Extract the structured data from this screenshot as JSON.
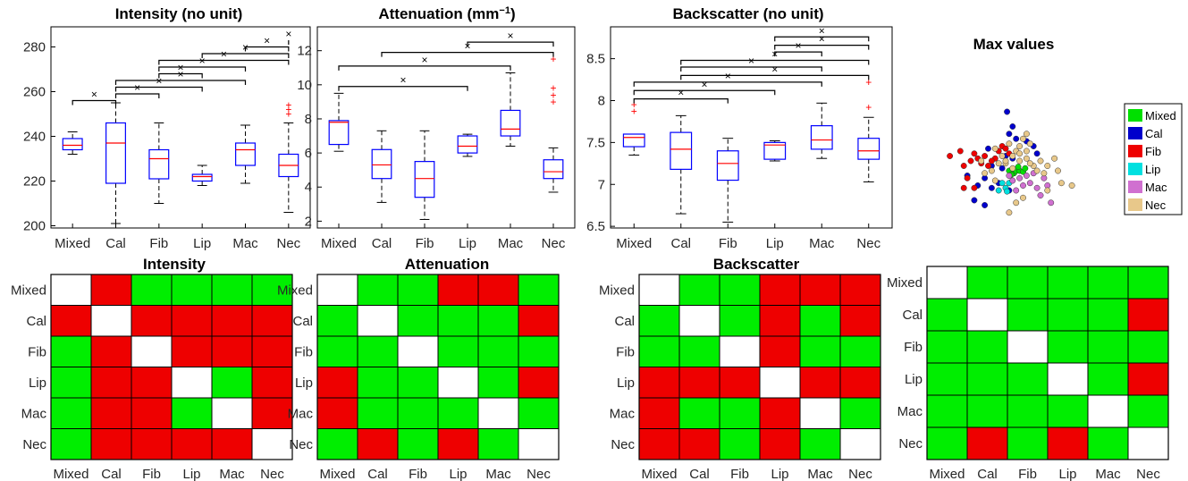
{
  "chart_data": [
    {
      "type": "box",
      "title": "Intensity (no unit)",
      "categories": [
        "Mixed",
        "Cal",
        "Fib",
        "Lip",
        "Mac",
        "Nec"
      ],
      "ylim": [
        199,
        289
      ],
      "yticks": [
        200,
        220,
        240,
        260,
        280
      ],
      "boxes": [
        {
          "lw": 232,
          "q1": 234,
          "med": 236,
          "q3": 239,
          "uw": 242,
          "outliers": []
        },
        {
          "lw": 201,
          "q1": 219,
          "med": 237,
          "q3": 246,
          "uw": 255,
          "outliers": []
        },
        {
          "lw": 210,
          "q1": 221,
          "med": 230,
          "q3": 234,
          "uw": 246,
          "outliers": []
        },
        {
          "lw": 218,
          "q1": 220,
          "med": 222,
          "q3": 223,
          "uw": 227,
          "outliers": []
        },
        {
          "lw": 219,
          "q1": 227,
          "med": 234,
          "q3": 237,
          "uw": 245,
          "outliers": []
        },
        {
          "lw": 206,
          "q1": 222,
          "med": 227,
          "q3": 232,
          "uw": 246,
          "outliers": [
            250,
            252,
            254
          ]
        }
      ],
      "significance": [
        {
          "a": 0,
          "b": 1,
          "y": 256
        },
        {
          "a": 1,
          "b": 2,
          "y": 259
        },
        {
          "a": 1,
          "b": 3,
          "y": 262
        },
        {
          "a": 1,
          "b": 4,
          "y": 265
        },
        {
          "a": 2,
          "b": 3,
          "y": 268
        },
        {
          "a": 2,
          "b": 4,
          "y": 271
        },
        {
          "a": 2,
          "b": 5,
          "y": 274
        },
        {
          "a": 3,
          "b": 5,
          "y": 277
        },
        {
          "a": 4,
          "b": 5,
          "y": 280
        },
        {
          "a": 5,
          "b": 6,
          "y": 283
        }
      ]
    },
    {
      "type": "box",
      "title": "Attenuation (mm",
      "title_sup": "−1",
      "title_end": ")",
      "categories": [
        "Mixed",
        "Cal",
        "Fib",
        "Lip",
        "Mac",
        "Nec"
      ],
      "ylim": [
        1.6,
        13.4
      ],
      "yticks": [
        2,
        4,
        6,
        8,
        10,
        12
      ],
      "boxes": [
        {
          "lw": 6.1,
          "q1": 6.5,
          "med": 7.8,
          "q3": 7.9,
          "uw": 9.5,
          "outliers": []
        },
        {
          "lw": 3.1,
          "q1": 4.5,
          "med": 5.3,
          "q3": 6.2,
          "uw": 7.3,
          "outliers": []
        },
        {
          "lw": 2.1,
          "q1": 3.4,
          "med": 4.5,
          "q3": 5.5,
          "uw": 7.3,
          "outliers": []
        },
        {
          "lw": 5.8,
          "q1": 6.0,
          "med": 6.4,
          "q3": 7.0,
          "uw": 7.1,
          "outliers": []
        },
        {
          "lw": 6.4,
          "q1": 7.0,
          "med": 7.4,
          "q3": 8.5,
          "uw": 10.7,
          "outliers": []
        },
        {
          "lw": 3.7,
          "q1": 4.5,
          "med": 4.9,
          "q3": 5.6,
          "uw": 6.3,
          "outliers": [
            9.0,
            9.4,
            9.8,
            11.5
          ]
        }
      ],
      "significance": [
        {
          "a": 0,
          "b": 3,
          "y": 9.9
        },
        {
          "a": 0,
          "b": 4,
          "y": 11.1
        },
        {
          "a": 1,
          "b": 5,
          "y": 11.9
        },
        {
          "a": 3,
          "b": 5,
          "y": 12.5
        }
      ]
    },
    {
      "type": "box",
      "title": "Backscatter (no unit)",
      "categories": [
        "Mixed",
        "Cal",
        "Fib",
        "Lip",
        "Mac",
        "Nec"
      ],
      "ylim": [
        6.48,
        8.88
      ],
      "yticks": [
        6.5,
        7,
        7.5,
        8,
        8.5
      ],
      "boxes": [
        {
          "lw": 7.35,
          "q1": 7.45,
          "med": 7.56,
          "q3": 7.6,
          "uw": 7.6,
          "outliers": [
            7.87,
            7.95
          ]
        },
        {
          "lw": 6.65,
          "q1": 7.18,
          "med": 7.42,
          "q3": 7.62,
          "uw": 7.82,
          "outliers": []
        },
        {
          "lw": 6.55,
          "q1": 7.05,
          "med": 7.25,
          "q3": 7.4,
          "uw": 7.55,
          "outliers": []
        },
        {
          "lw": 7.28,
          "q1": 7.3,
          "med": 7.47,
          "q3": 7.5,
          "uw": 7.52,
          "outliers": []
        },
        {
          "lw": 7.31,
          "q1": 7.42,
          "med": 7.53,
          "q3": 7.7,
          "uw": 7.97,
          "outliers": []
        },
        {
          "lw": 7.03,
          "q1": 7.3,
          "med": 7.4,
          "q3": 7.55,
          "uw": 7.8,
          "outliers": [
            7.92,
            8.22
          ]
        }
      ],
      "significance": [
        {
          "a": 0,
          "b": 2,
          "y": 8.02
        },
        {
          "a": 0,
          "b": 3,
          "y": 8.12
        },
        {
          "a": 0,
          "b": 4,
          "y": 8.22
        },
        {
          "a": 1,
          "b": 5,
          "y": 8.3
        },
        {
          "a": 1,
          "b": 4,
          "y": 8.4
        },
        {
          "a": 1,
          "b": 5,
          "y": 8.48
        },
        {
          "a": 3,
          "b": 4,
          "y": 8.58
        },
        {
          "a": 3,
          "b": 5,
          "y": 8.66
        },
        {
          "a": 3,
          "b": 6,
          "y": 8.76
        }
      ]
    },
    {
      "type": "scatter",
      "title": "Max values",
      "series": [
        {
          "name": "Mixed",
          "color": "#00e000",
          "points": [
            [
              0.05,
              -0.2
            ],
            [
              0.12,
              -0.25
            ],
            [
              0.15,
              -0.2
            ],
            [
              0.2,
              -0.2
            ],
            [
              0.25,
              -0.22
            ],
            [
              0.08,
              -0.28
            ],
            [
              0.18,
              -0.12
            ],
            [
              0.28,
              -0.15
            ]
          ]
        },
        {
          "name": "Cal",
          "color": "#0000cc",
          "points": [
            [
              0.02,
              1.0
            ],
            [
              0.05,
              0.55
            ],
            [
              0.1,
              0.7
            ],
            [
              0.15,
              0.45
            ],
            [
              0.3,
              0.4
            ],
            [
              0.4,
              0.3
            ],
            [
              0.45,
              0.15
            ],
            [
              -0.25,
              0.25
            ],
            [
              -0.2,
              -0.1
            ],
            [
              -0.3,
              -0.35
            ],
            [
              -0.4,
              -0.5
            ],
            [
              -0.55,
              -0.3
            ],
            [
              -0.45,
              -0.8
            ],
            [
              -0.3,
              -0.9
            ],
            [
              -0.2,
              -0.55
            ],
            [
              -0.1,
              -0.45
            ],
            [
              0.0,
              0.1
            ],
            [
              0.1,
              0.05
            ],
            [
              -0.05,
              -0.15
            ],
            [
              0.05,
              -0.6
            ]
          ]
        },
        {
          "name": "Fib",
          "color": "#ee0000",
          "points": [
            [
              -0.8,
              0.1
            ],
            [
              -0.65,
              0.2
            ],
            [
              -0.6,
              -0.1
            ],
            [
              -0.5,
              0.0
            ],
            [
              -0.45,
              0.15
            ],
            [
              -0.4,
              0.05
            ],
            [
              -0.35,
              -0.05
            ],
            [
              -0.3,
              0.1
            ],
            [
              -0.25,
              -0.1
            ],
            [
              -0.15,
              0.05
            ],
            [
              -0.1,
              0.2
            ],
            [
              -0.05,
              0.3
            ],
            [
              0.0,
              0.25
            ],
            [
              0.05,
              0.15
            ],
            [
              -0.55,
              -0.35
            ],
            [
              -0.45,
              -0.55
            ],
            [
              -0.6,
              -0.55
            ],
            [
              -0.2,
              0.0
            ]
          ]
        },
        {
          "name": "Lip",
          "color": "#00e0e0",
          "points": [
            [
              -0.05,
              -0.45
            ],
            [
              0.05,
              -0.45
            ],
            [
              -0.1,
              -0.6
            ],
            [
              0.0,
              -0.55
            ],
            [
              0.02,
              -0.62
            ]
          ]
        },
        {
          "name": "Mac",
          "color": "#d070d0",
          "points": [
            [
              0.1,
              -0.4
            ],
            [
              0.2,
              -0.35
            ],
            [
              0.3,
              -0.3
            ],
            [
              0.35,
              -0.45
            ],
            [
              0.45,
              -0.55
            ],
            [
              0.5,
              -0.7
            ],
            [
              0.55,
              -0.35
            ],
            [
              0.15,
              -0.6
            ],
            [
              0.25,
              -0.5
            ],
            [
              0.6,
              -0.5
            ],
            [
              0.65,
              -0.85
            ],
            [
              0.4,
              -0.25
            ],
            [
              0.05,
              -0.3
            ]
          ]
        },
        {
          "name": "Nec",
          "color": "#e8c88a",
          "points": [
            [
              0.25,
              0.45
            ],
            [
              0.3,
              0.55
            ],
            [
              0.35,
              0.35
            ],
            [
              0.2,
              0.3
            ],
            [
              0.15,
              0.2
            ],
            [
              0.1,
              0.1
            ],
            [
              0.05,
              0.35
            ],
            [
              -0.05,
              0.1
            ],
            [
              -0.1,
              -0.05
            ],
            [
              -0.2,
              -0.2
            ],
            [
              -0.3,
              -0.25
            ],
            [
              -0.35,
              0.0
            ],
            [
              0.0,
              -0.05
            ],
            [
              0.1,
              -0.15
            ],
            [
              0.2,
              0.0
            ],
            [
              0.3,
              0.05
            ],
            [
              0.4,
              -0.1
            ],
            [
              0.45,
              -0.2
            ],
            [
              0.5,
              0.0
            ],
            [
              0.55,
              -0.25
            ],
            [
              0.6,
              -0.1
            ],
            [
              0.7,
              0.05
            ],
            [
              0.75,
              -0.2
            ],
            [
              0.8,
              -0.45
            ],
            [
              0.95,
              -0.5
            ],
            [
              0.6,
              -0.6
            ],
            [
              0.25,
              -0.75
            ],
            [
              0.15,
              -0.85
            ],
            [
              -0.15,
              -0.4
            ],
            [
              0.3,
              0.2
            ],
            [
              0.05,
              -1.05
            ],
            [
              0.0,
              0.0
            ],
            [
              -0.15,
              0.25
            ],
            [
              0.2,
              0.15
            ],
            [
              0.35,
              -0.05
            ]
          ]
        }
      ]
    },
    {
      "type": "heatmap",
      "title": "Intensity",
      "categories": [
        "Mixed",
        "Cal",
        "Fib",
        "Lip",
        "Mac",
        "Nec"
      ],
      "cells": [
        [
          "W",
          "R",
          "G",
          "G",
          "G",
          "G"
        ],
        [
          "R",
          "W",
          "R",
          "R",
          "R",
          "R"
        ],
        [
          "G",
          "R",
          "W",
          "R",
          "R",
          "R"
        ],
        [
          "G",
          "R",
          "R",
          "W",
          "G",
          "R"
        ],
        [
          "G",
          "R",
          "R",
          "G",
          "W",
          "R"
        ],
        [
          "G",
          "R",
          "R",
          "R",
          "R",
          "W"
        ]
      ]
    },
    {
      "type": "heatmap",
      "title": "Attenuation",
      "categories": [
        "Mixed",
        "Cal",
        "Fib",
        "Lip",
        "Mac",
        "Nec"
      ],
      "cells": [
        [
          "W",
          "G",
          "G",
          "R",
          "R",
          "G"
        ],
        [
          "G",
          "W",
          "G",
          "G",
          "G",
          "R"
        ],
        [
          "G",
          "G",
          "W",
          "G",
          "G",
          "G"
        ],
        [
          "R",
          "G",
          "G",
          "W",
          "G",
          "R"
        ],
        [
          "R",
          "G",
          "G",
          "G",
          "W",
          "G"
        ],
        [
          "G",
          "R",
          "G",
          "R",
          "G",
          "W"
        ]
      ]
    },
    {
      "type": "heatmap",
      "title": "Backscatter",
      "categories": [
        "Mixed",
        "Cal",
        "Fib",
        "Lip",
        "Mac",
        "Nec"
      ],
      "cells": [
        [
          "W",
          "G",
          "G",
          "R",
          "R",
          "R"
        ],
        [
          "G",
          "W",
          "G",
          "R",
          "G",
          "R"
        ],
        [
          "G",
          "G",
          "W",
          "R",
          "G",
          "G"
        ],
        [
          "R",
          "R",
          "R",
          "W",
          "R",
          "R"
        ],
        [
          "R",
          "G",
          "G",
          "R",
          "W",
          "G"
        ],
        [
          "R",
          "R",
          "G",
          "R",
          "G",
          "W"
        ]
      ]
    },
    {
      "type": "heatmap",
      "title": "",
      "categories": [
        "Mixed",
        "Cal",
        "Fib",
        "Lip",
        "Mac",
        "Nec"
      ],
      "cells": [
        [
          "W",
          "G",
          "G",
          "G",
          "G",
          "G"
        ],
        [
          "G",
          "W",
          "G",
          "G",
          "G",
          "R"
        ],
        [
          "G",
          "G",
          "W",
          "G",
          "G",
          "G"
        ],
        [
          "G",
          "G",
          "G",
          "W",
          "G",
          "R"
        ],
        [
          "G",
          "G",
          "G",
          "G",
          "W",
          "G"
        ],
        [
          "G",
          "R",
          "G",
          "R",
          "G",
          "W"
        ]
      ]
    }
  ],
  "colors": {
    "G": "#00ee00",
    "R": "#ee0000",
    "W": "#ffffff"
  }
}
